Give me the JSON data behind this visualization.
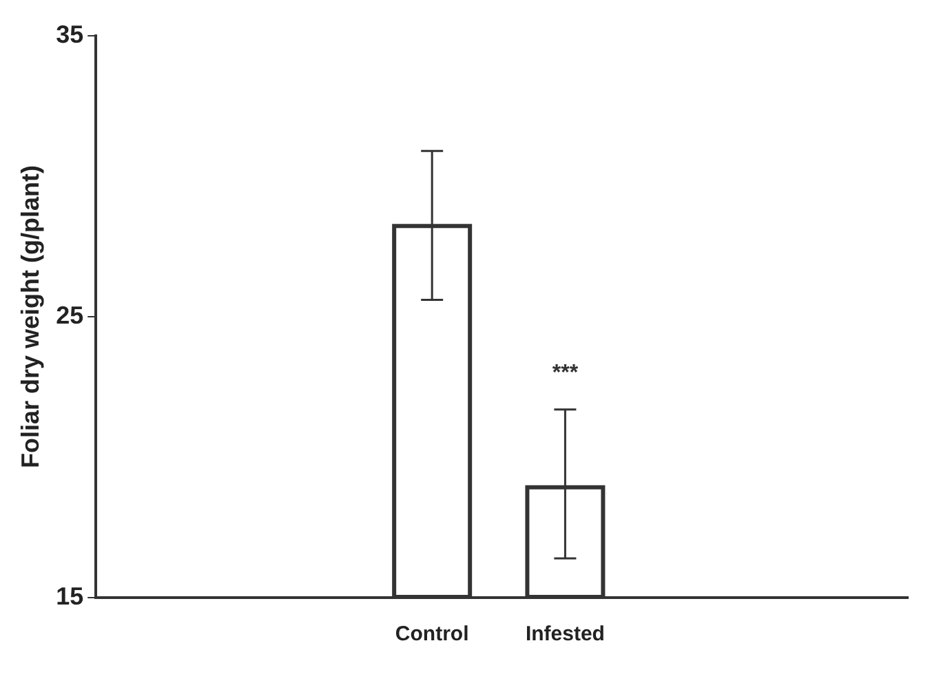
{
  "chart_data": {
    "type": "bar",
    "ylabel": "Foliar dry weight (g/plant)",
    "categories": [
      "Control",
      "Infested"
    ],
    "values": [
      28.3,
      19.0
    ],
    "errors": [
      [
        25.6,
        30.9
      ],
      [
        16.4,
        21.7
      ]
    ],
    "color": "#333333",
    "ylim": [
      15,
      35
    ],
    "yticks": [
      15,
      25,
      35
    ],
    "grid": false,
    "legend": false,
    "annotations": [
      "***"
    ]
  }
}
